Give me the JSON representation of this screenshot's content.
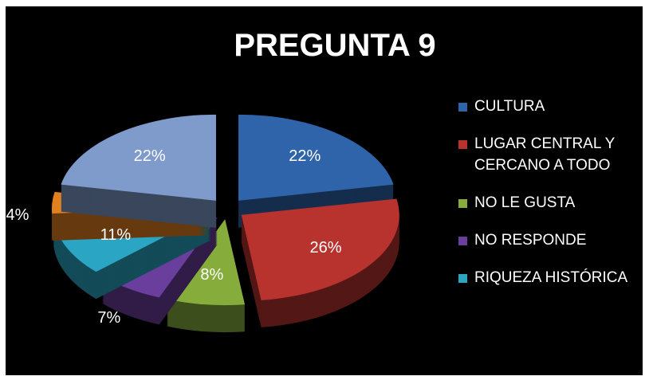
{
  "chart_data": {
    "type": "pie",
    "title": "PREGUNTA 9",
    "categories": [
      "CULTURA",
      "LUGAR CENTRAL Y CERCANO A TODO",
      "NO LE GUSTA",
      "NO RESPONDE",
      "RIQUEZA HISTÓRICA",
      null,
      null
    ],
    "values": [
      22,
      26,
      8,
      7,
      11,
      4,
      22
    ],
    "value_labels": [
      "22%",
      "26%",
      "8%",
      "7%",
      "11%",
      "4%",
      "22%"
    ],
    "colors": [
      "#2f64ab",
      "#b8322e",
      "#86ad3c",
      "#6a3e9c",
      "#2aa6c4",
      "#e2801f",
      "#7f9bcb"
    ],
    "legend": "right"
  }
}
